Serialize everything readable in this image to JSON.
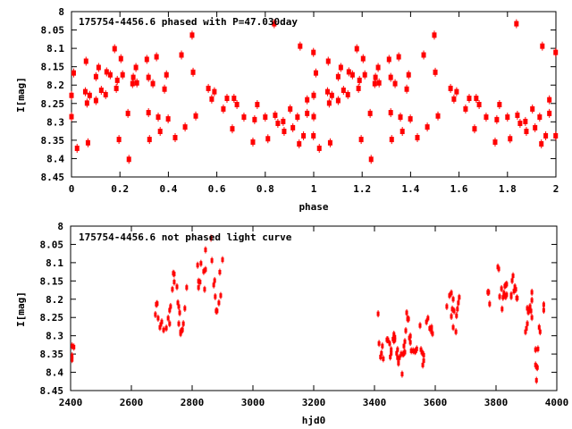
{
  "chart_data": [
    {
      "type": "scatter",
      "title": "175754-4456.6 phased with P=47.030day",
      "xlabel": "phase",
      "ylabel": "I[mag]",
      "xlim": [
        0,
        2
      ],
      "ylim": [
        8,
        8.45
      ],
      "y_inverted": true,
      "xticks": [
        0,
        0.2,
        0.4,
        0.6,
        0.8,
        1,
        1.2,
        1.4,
        1.6,
        1.8,
        2
      ],
      "xtick_labels": [
        "0",
        "0.2",
        "0.4",
        "0.6",
        "0.8",
        "1",
        "1.2",
        "1.4",
        "1.6",
        "1.8",
        "2"
      ],
      "yticks": [
        8,
        8.05,
        8.1,
        8.15,
        8.2,
        8.25,
        8.3,
        8.35,
        8.4,
        8.45
      ],
      "ytick_labels": [
        "8",
        "8.05",
        "8.1",
        "8.15",
        "8.2",
        "8.25",
        "8.3",
        "8.35",
        "8.4",
        "8.45"
      ],
      "grid": false,
      "color": "#ff0000",
      "repeat_phase": true,
      "points": [
        [
          0.0,
          8.228
        ],
        [
          0.0,
          8.286
        ],
        [
          0.009,
          8.167
        ],
        [
          0.023,
          8.372
        ],
        [
          0.06,
          8.135
        ],
        [
          0.057,
          8.218
        ],
        [
          0.064,
          8.249
        ],
        [
          0.068,
          8.357
        ],
        [
          0.075,
          8.228
        ],
        [
          0.101,
          8.177
        ],
        [
          0.101,
          8.242
        ],
        [
          0.112,
          8.152
        ],
        [
          0.123,
          8.214
        ],
        [
          0.141,
          8.226
        ],
        [
          0.145,
          8.164
        ],
        [
          0.16,
          8.172
        ],
        [
          0.178,
          8.101
        ],
        [
          0.185,
          8.209
        ],
        [
          0.189,
          8.187
        ],
        [
          0.196,
          8.348
        ],
        [
          0.204,
          8.128
        ],
        [
          0.211,
          8.172
        ],
        [
          0.233,
          8.277
        ],
        [
          0.237,
          8.402
        ],
        [
          0.252,
          8.196
        ],
        [
          0.255,
          8.179
        ],
        [
          0.266,
          8.152
        ],
        [
          0.27,
          8.194
        ],
        [
          0.311,
          8.13
        ],
        [
          0.318,
          8.179
        ],
        [
          0.318,
          8.275
        ],
        [
          0.322,
          8.348
        ],
        [
          0.336,
          8.196
        ],
        [
          0.351,
          8.123
        ],
        [
          0.358,
          8.287
        ],
        [
          0.366,
          8.326
        ],
        [
          0.384,
          8.211
        ],
        [
          0.392,
          8.172
        ],
        [
          0.399,
          8.292
        ],
        [
          0.428,
          8.343
        ],
        [
          0.454,
          8.118
        ],
        [
          0.469,
          8.314
        ],
        [
          0.498,
          8.064
        ],
        [
          0.502,
          8.165
        ],
        [
          0.513,
          8.284
        ],
        [
          0.565,
          8.209
        ],
        [
          0.579,
          8.238
        ],
        [
          0.59,
          8.218
        ],
        [
          0.627,
          8.265
        ],
        [
          0.642,
          8.236
        ],
        [
          0.664,
          8.319
        ],
        [
          0.671,
          8.236
        ],
        [
          0.683,
          8.253
        ],
        [
          0.712,
          8.287
        ],
        [
          0.749,
          8.355
        ],
        [
          0.756,
          8.294
        ],
        [
          0.767,
          8.253
        ],
        [
          0.8,
          8.287
        ],
        [
          0.811,
          8.346
        ],
        [
          0.837,
          8.033
        ],
        [
          0.841,
          8.282
        ],
        [
          0.852,
          8.304
        ],
        [
          0.874,
          8.299
        ],
        [
          0.878,
          8.326
        ],
        [
          0.903,
          8.265
        ],
        [
          0.914,
          8.316
        ],
        [
          0.933,
          8.287
        ],
        [
          0.94,
          8.36
        ],
        [
          0.944,
          8.094
        ],
        [
          0.958,
          8.338
        ],
        [
          0.973,
          8.24
        ],
        [
          0.973,
          8.277
        ],
        [
          0.999,
          8.111
        ],
        [
          0.999,
          8.338
        ]
      ]
    },
    {
      "type": "scatter",
      "title": "175754-4456.6 not phased light curve",
      "xlabel": "hjd0",
      "ylabel": "I[mag]",
      "xlim": [
        2400,
        4000
      ],
      "ylim": [
        8,
        8.45
      ],
      "y_inverted": true,
      "xticks": [
        2400,
        2600,
        2800,
        3000,
        3200,
        3400,
        3600,
        3800,
        4000
      ],
      "xtick_labels": [
        "2400",
        "2600",
        "2800",
        "3000",
        "3200",
        "3400",
        "3600",
        "3800",
        "4000"
      ],
      "yticks": [
        8,
        8.05,
        8.1,
        8.15,
        8.2,
        8.25,
        8.3,
        8.35,
        8.4,
        8.45
      ],
      "ytick_labels": [
        "8",
        "8.05",
        "8.1",
        "8.15",
        "8.2",
        "8.25",
        "8.3",
        "8.35",
        "8.4",
        "8.45"
      ],
      "grid": false,
      "color": "#ff0000",
      "repeat_phase": false,
      "points": [
        [
          2405,
          8.328
        ],
        [
          2411,
          8.331
        ],
        [
          2405,
          8.355
        ],
        [
          2405,
          8.365
        ],
        [
          2679,
          8.242
        ],
        [
          2682,
          8.214
        ],
        [
          2685,
          8.212
        ],
        [
          2688,
          8.252
        ],
        [
          2694,
          8.277
        ],
        [
          2697,
          8.269
        ],
        [
          2700,
          8.262
        ],
        [
          2706,
          8.284
        ],
        [
          2715,
          8.279
        ],
        [
          2721,
          8.252
        ],
        [
          2726,
          8.267
        ],
        [
          2726,
          8.23
        ],
        [
          2729,
          8.22
        ],
        [
          2735,
          8.173
        ],
        [
          2738,
          8.129
        ],
        [
          2741,
          8.131
        ],
        [
          2741,
          8.153
        ],
        [
          2750,
          8.166
        ],
        [
          2753,
          8.21
        ],
        [
          2756,
          8.22
        ],
        [
          2756,
          8.267
        ],
        [
          2759,
          8.237
        ],
        [
          2762,
          8.294
        ],
        [
          2762,
          8.289
        ],
        [
          2765,
          8.286
        ],
        [
          2768,
          8.284
        ],
        [
          2771,
          8.267
        ],
        [
          2776,
          8.225
        ],
        [
          2782,
          8.168
        ],
        [
          2818,
          8.107
        ],
        [
          2821,
          8.151
        ],
        [
          2826,
          8.153
        ],
        [
          2821,
          8.168
        ],
        [
          2829,
          8.102
        ],
        [
          2838,
          8.124
        ],
        [
          2844,
          8.119
        ],
        [
          2841,
          8.173
        ],
        [
          2844,
          8.065
        ],
        [
          2862,
          8.033
        ],
        [
          2865,
          8.094
        ],
        [
          2871,
          8.161
        ],
        [
          2874,
          8.149
        ],
        [
          2876,
          8.193
        ],
        [
          2879,
          8.232
        ],
        [
          2882,
          8.232
        ],
        [
          2888,
          8.21
        ],
        [
          2891,
          8.126
        ],
        [
          2894,
          8.19
        ],
        [
          2900,
          8.092
        ],
        [
          3412,
          8.24
        ],
        [
          3415,
          8.321
        ],
        [
          3420,
          8.358
        ],
        [
          3423,
          8.348
        ],
        [
          3426,
          8.328
        ],
        [
          3429,
          8.363
        ],
        [
          3441,
          8.311
        ],
        [
          3444,
          8.311
        ],
        [
          3450,
          8.321
        ],
        [
          3452,
          8.358
        ],
        [
          3455,
          8.348
        ],
        [
          3455,
          8.338
        ],
        [
          3461,
          8.309
        ],
        [
          3464,
          8.296
        ],
        [
          3464,
          8.314
        ],
        [
          3467,
          8.304
        ],
        [
          3467,
          8.311
        ],
        [
          3473,
          8.348
        ],
        [
          3476,
          8.338
        ],
        [
          3476,
          8.36
        ],
        [
          3479,
          8.375
        ],
        [
          3482,
          8.36
        ],
        [
          3488,
          8.35
        ],
        [
          3491,
          8.405
        ],
        [
          3494,
          8.35
        ],
        [
          3497,
          8.328
        ],
        [
          3497,
          8.348
        ],
        [
          3500,
          8.316
        ],
        [
          3500,
          8.345
        ],
        [
          3503,
          8.286
        ],
        [
          3506,
          8.237
        ],
        [
          3509,
          8.254
        ],
        [
          3512,
          8.254
        ],
        [
          3515,
          8.306
        ],
        [
          3518,
          8.301
        ],
        [
          3518,
          8.318
        ],
        [
          3521,
          8.341
        ],
        [
          3527,
          8.341
        ],
        [
          3533,
          8.343
        ],
        [
          3536,
          8.341
        ],
        [
          3539,
          8.336
        ],
        [
          3550,
          8.272
        ],
        [
          3553,
          8.338
        ],
        [
          3556,
          8.345
        ],
        [
          3559,
          8.348
        ],
        [
          3562,
          8.353
        ],
        [
          3559,
          8.38
        ],
        [
          3562,
          8.368
        ],
        [
          3571,
          8.262
        ],
        [
          3576,
          8.252
        ],
        [
          3582,
          8.28
        ],
        [
          3588,
          8.277
        ],
        [
          3588,
          8.289
        ],
        [
          3591,
          8.294
        ],
        [
          3638,
          8.22
        ],
        [
          3647,
          8.19
        ],
        [
          3653,
          8.183
        ],
        [
          3653,
          8.247
        ],
        [
          3656,
          8.227
        ],
        [
          3659,
          8.2
        ],
        [
          3659,
          8.277
        ],
        [
          3662,
          8.232
        ],
        [
          3668,
          8.289
        ],
        [
          3670,
          8.245
        ],
        [
          3673,
          8.227
        ],
        [
          3676,
          8.21
        ],
        [
          3679,
          8.195
        ],
        [
          3773,
          8.181
        ],
        [
          3776,
          8.181
        ],
        [
          3779,
          8.213
        ],
        [
          3806,
          8.112
        ],
        [
          3809,
          8.117
        ],
        [
          3812,
          8.193
        ],
        [
          3818,
          8.171
        ],
        [
          3820,
          8.227
        ],
        [
          3823,
          8.195
        ],
        [
          3826,
          8.183
        ],
        [
          3829,
          8.164
        ],
        [
          3832,
          8.161
        ],
        [
          3835,
          8.159
        ],
        [
          3829,
          8.19
        ],
        [
          3832,
          8.193
        ],
        [
          3835,
          8.188
        ],
        [
          3850,
          8.188
        ],
        [
          3850,
          8.193
        ],
        [
          3853,
          8.149
        ],
        [
          3856,
          8.136
        ],
        [
          3859,
          8.178
        ],
        [
          3862,
          8.166
        ],
        [
          3865,
          8.173
        ],
        [
          3868,
          8.197
        ],
        [
          3870,
          8.197
        ],
        [
          3897,
          8.289
        ],
        [
          3900,
          8.28
        ],
        [
          3903,
          8.267
        ],
        [
          3903,
          8.225
        ],
        [
          3906,
          8.235
        ],
        [
          3909,
          8.232
        ],
        [
          3912,
          8.22
        ],
        [
          3915,
          8.232
        ],
        [
          3918,
          8.181
        ],
        [
          3918,
          8.203
        ],
        [
          3918,
          8.25
        ],
        [
          3930,
          8.338
        ],
        [
          3938,
          8.336
        ],
        [
          3930,
          8.38
        ],
        [
          3933,
          8.385
        ],
        [
          3936,
          8.387
        ],
        [
          3933,
          8.422
        ],
        [
          3942,
          8.277
        ],
        [
          3945,
          8.289
        ],
        [
          3957,
          8.215
        ],
        [
          3957,
          8.23
        ]
      ]
    }
  ]
}
